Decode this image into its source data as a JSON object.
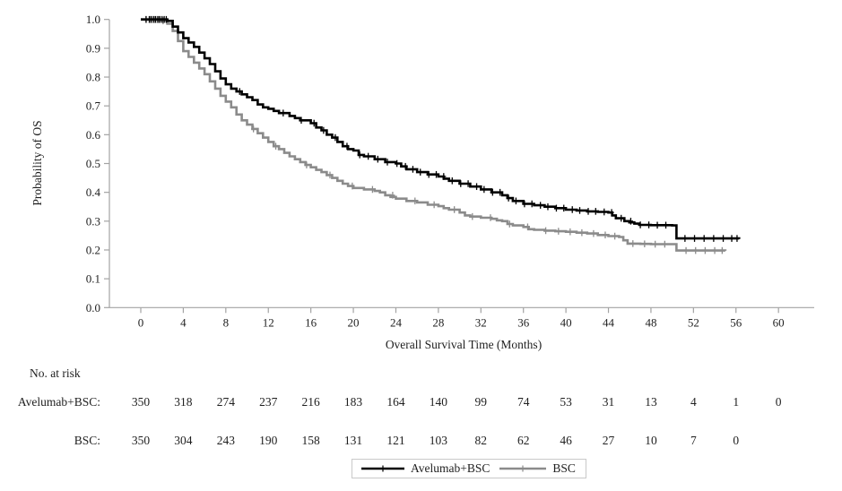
{
  "chart_data": {
    "type": "line",
    "subtype": "kaplan-meier-step",
    "title": "",
    "xlabel": "Overall Survival Time (Months)",
    "ylabel": "Probability of OS",
    "xlim": [
      0,
      63
    ],
    "ylim": [
      0.0,
      1.0
    ],
    "xticks": [
      0,
      4,
      8,
      12,
      16,
      20,
      24,
      28,
      32,
      36,
      40,
      44,
      48,
      52,
      56,
      60
    ],
    "ytick_labels": [
      "0.0",
      "0.1",
      "0.2",
      "0.3",
      "0.4",
      "0.5",
      "0.6",
      "0.7",
      "0.8",
      "0.9",
      "1.0"
    ],
    "grid": false,
    "legend_position": "bottom",
    "series": [
      {
        "name": "Avelumab+BSC",
        "color": "#000000",
        "points": [
          [
            0,
            1
          ],
          [
            1,
            1
          ],
          [
            2,
            1
          ],
          [
            2.5,
            0.995
          ],
          [
            3,
            0.975
          ],
          [
            3.5,
            0.955
          ],
          [
            4,
            0.935
          ],
          [
            4.5,
            0.92
          ],
          [
            5,
            0.905
          ],
          [
            5.5,
            0.885
          ],
          [
            6,
            0.865
          ],
          [
            6.5,
            0.845
          ],
          [
            7,
            0.82
          ],
          [
            7.5,
            0.795
          ],
          [
            8,
            0.775
          ],
          [
            8.5,
            0.76
          ],
          [
            9,
            0.75
          ],
          [
            9.5,
            0.74
          ],
          [
            10,
            0.73
          ],
          [
            10.5,
            0.72
          ],
          [
            11,
            0.705
          ],
          [
            11.5,
            0.695
          ],
          [
            12,
            0.69
          ],
          [
            13,
            0.675
          ],
          [
            14,
            0.665
          ],
          [
            15,
            0.65
          ],
          [
            16,
            0.64
          ],
          [
            16.5,
            0.625
          ],
          [
            17,
            0.615
          ],
          [
            17.5,
            0.6
          ],
          [
            18,
            0.59
          ],
          [
            18.5,
            0.575
          ],
          [
            19,
            0.56
          ],
          [
            19.5,
            0.55
          ],
          [
            20,
            0.545
          ],
          [
            20.5,
            0.53
          ],
          [
            21,
            0.525
          ],
          [
            22,
            0.515
          ],
          [
            23,
            0.505
          ],
          [
            24,
            0.5
          ],
          [
            24.5,
            0.49
          ],
          [
            25,
            0.48
          ],
          [
            26,
            0.47
          ],
          [
            27,
            0.462
          ],
          [
            28,
            0.455
          ],
          [
            29,
            0.44
          ],
          [
            30,
            0.43
          ],
          [
            31,
            0.42
          ],
          [
            32,
            0.41
          ],
          [
            33,
            0.4
          ],
          [
            34,
            0.39
          ],
          [
            34.5,
            0.38
          ],
          [
            35,
            0.37
          ],
          [
            36,
            0.36
          ],
          [
            37,
            0.355
          ],
          [
            38,
            0.35
          ],
          [
            39,
            0.345
          ],
          [
            40,
            0.34
          ],
          [
            41,
            0.337
          ],
          [
            42,
            0.334
          ],
          [
            43,
            0.332
          ],
          [
            44,
            0.33
          ],
          [
            44.7,
            0.31
          ],
          [
            45.5,
            0.3
          ],
          [
            46.9,
            0.287
          ],
          [
            48,
            0.286
          ],
          [
            50,
            0.285
          ],
          [
            50.4,
            0.24
          ],
          [
            52,
            0.24
          ],
          [
            56.3,
            0.238
          ]
        ],
        "censor_times": [
          0.5,
          0.8,
          1.0,
          1.2,
          1.4,
          1.6,
          1.8,
          2.0,
          2.2,
          2.4,
          9.3,
          13.4,
          15.1,
          16.3,
          17.2,
          18.3,
          19.4,
          20.6,
          21.4,
          22.3,
          23.2,
          24.1,
          24.9,
          25.6,
          26.3,
          27.1,
          27.8,
          28.5,
          29.3,
          30.1,
          30.8,
          31.6,
          32.3,
          33.1,
          33.8,
          34.6,
          35.3,
          36.1,
          36.8,
          37.6,
          38.3,
          39.1,
          39.8,
          40.6,
          41.3,
          42.1,
          42.8,
          43.6,
          44.3,
          45.2,
          46.1,
          47.0,
          47.8,
          48.6,
          49.4,
          51.2,
          52.1,
          53.0,
          53.9,
          54.8,
          55.6,
          56.1
        ]
      },
      {
        "name": "BSC",
        "color": "#8b8b8b",
        "points": [
          [
            0,
            1
          ],
          [
            1,
            1
          ],
          [
            2,
            0.995
          ],
          [
            2.5,
            0.985
          ],
          [
            3,
            0.96
          ],
          [
            3.5,
            0.925
          ],
          [
            4,
            0.89
          ],
          [
            4.5,
            0.87
          ],
          [
            5,
            0.85
          ],
          [
            5.5,
            0.83
          ],
          [
            6,
            0.81
          ],
          [
            6.5,
            0.785
          ],
          [
            7,
            0.76
          ],
          [
            7.5,
            0.735
          ],
          [
            8,
            0.715
          ],
          [
            8.5,
            0.695
          ],
          [
            9,
            0.67
          ],
          [
            9.5,
            0.65
          ],
          [
            10,
            0.635
          ],
          [
            10.5,
            0.62
          ],
          [
            11,
            0.605
          ],
          [
            11.5,
            0.59
          ],
          [
            12,
            0.575
          ],
          [
            12.5,
            0.56
          ],
          [
            13,
            0.55
          ],
          [
            13.5,
            0.537
          ],
          [
            14,
            0.525
          ],
          [
            14.5,
            0.515
          ],
          [
            15,
            0.505
          ],
          [
            15.5,
            0.495
          ],
          [
            16,
            0.487
          ],
          [
            16.5,
            0.478
          ],
          [
            17,
            0.47
          ],
          [
            17.5,
            0.46
          ],
          [
            18,
            0.45
          ],
          [
            18.5,
            0.44
          ],
          [
            19,
            0.43
          ],
          [
            19.5,
            0.422
          ],
          [
            20,
            0.415
          ],
          [
            21,
            0.41
          ],
          [
            22,
            0.405
          ],
          [
            22.5,
            0.4
          ],
          [
            23,
            0.39
          ],
          [
            24,
            0.378
          ],
          [
            25,
            0.37
          ],
          [
            26,
            0.365
          ],
          [
            27,
            0.357
          ],
          [
            28,
            0.352
          ],
          [
            28.5,
            0.345
          ],
          [
            29,
            0.34
          ],
          [
            30,
            0.33
          ],
          [
            30.5,
            0.32
          ],
          [
            31,
            0.316
          ],
          [
            32,
            0.312
          ],
          [
            33,
            0.308
          ],
          [
            33.5,
            0.303
          ],
          [
            34,
            0.3
          ],
          [
            34.5,
            0.29
          ],
          [
            35,
            0.285
          ],
          [
            36,
            0.28
          ],
          [
            36.5,
            0.272
          ],
          [
            37,
            0.27
          ],
          [
            38,
            0.267
          ],
          [
            39,
            0.265
          ],
          [
            40,
            0.263
          ],
          [
            41,
            0.26
          ],
          [
            42,
            0.257
          ],
          [
            43,
            0.252
          ],
          [
            44,
            0.248
          ],
          [
            45,
            0.245
          ],
          [
            45.8,
            0.222
          ],
          [
            47,
            0.221
          ],
          [
            48,
            0.22
          ],
          [
            50,
            0.22
          ],
          [
            50.4,
            0.198
          ],
          [
            52,
            0.198
          ],
          [
            55,
            0.197
          ]
        ],
        "censor_times": [
          0.5,
          0.9,
          1.3,
          1.7,
          2.1,
          10.6,
          12.7,
          15.6,
          17.8,
          19.9,
          21.8,
          23.7,
          25.8,
          27.6,
          29.5,
          31.2,
          32.9,
          34.7,
          36.4,
          38.1,
          39.3,
          40.4,
          41.5,
          42.6,
          43.7,
          44.6,
          46.3,
          47.4,
          48.4,
          49.3,
          51.3,
          52.2,
          53.1,
          54.0,
          54.7
        ]
      }
    ]
  },
  "risk_table": {
    "heading": "No. at risk",
    "months": [
      0,
      4,
      8,
      12,
      16,
      20,
      24,
      28,
      32,
      36,
      40,
      44,
      48,
      52,
      56,
      60
    ],
    "rows": [
      {
        "label": "Avelumab+BSC:",
        "values": [
          350,
          318,
          274,
          237,
          216,
          183,
          164,
          140,
          99,
          74,
          53,
          31,
          13,
          4,
          1,
          0
        ]
      },
      {
        "label": "BSC:",
        "values": [
          350,
          304,
          243,
          190,
          158,
          131,
          121,
          103,
          82,
          62,
          46,
          27,
          10,
          7,
          0
        ]
      }
    ]
  },
  "legend": {
    "items": [
      {
        "label": "Avelumab+BSC",
        "color": "#000000"
      },
      {
        "label": "BSC",
        "color": "#8b8b8b"
      }
    ]
  },
  "colors": {
    "axis": "#a3a3a3",
    "text": "#1f1f1f",
    "background": "#ffffff"
  }
}
